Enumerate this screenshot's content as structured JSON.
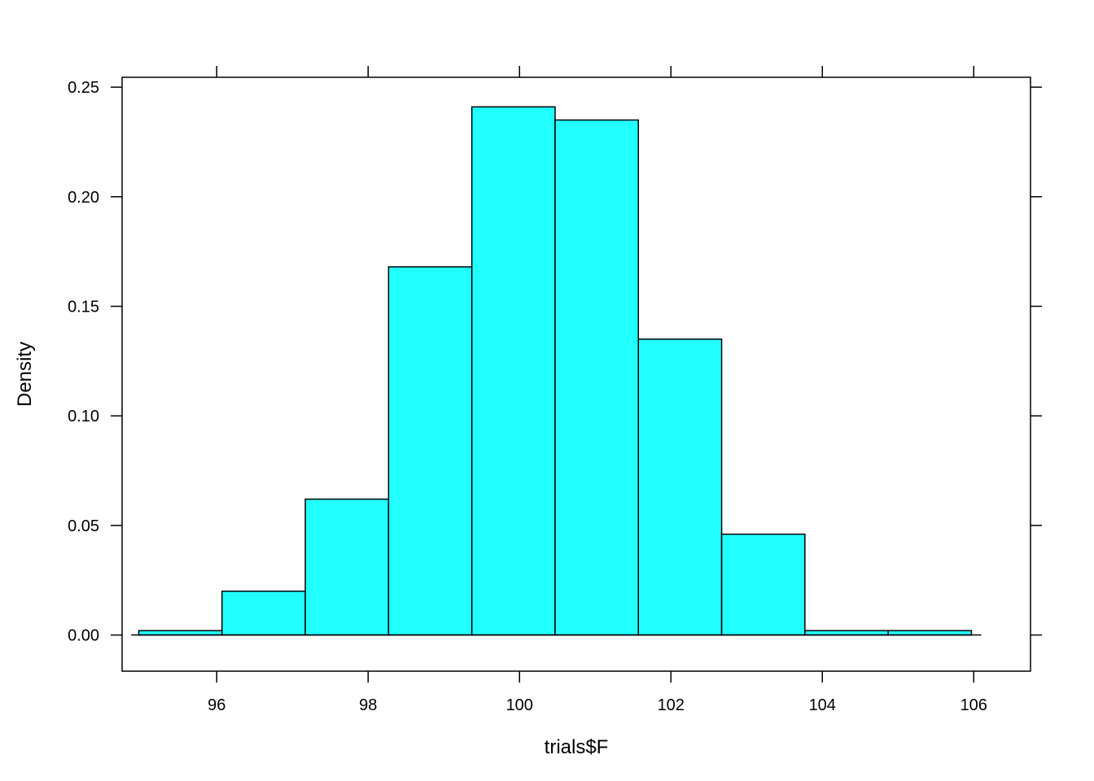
{
  "chart_data": {
    "type": "bar",
    "xlabel": "trials$F",
    "ylabel": "Density",
    "xlim": [
      94.75,
      106.75
    ],
    "ylim": [
      -0.0165,
      0.2545
    ],
    "x_ticks": [
      "96",
      "98",
      "100",
      "102",
      "104",
      "106"
    ],
    "y_ticks": [
      "0.00",
      "0.05",
      "0.10",
      "0.15",
      "0.20",
      "0.25"
    ],
    "baseline_range": [
      94.87,
      106.1
    ],
    "bins": [
      {
        "x0": 94.97,
        "x1": 96.07,
        "density": 0.002
      },
      {
        "x0": 96.07,
        "x1": 97.17,
        "density": 0.02
      },
      {
        "x0": 97.17,
        "x1": 98.27,
        "density": 0.062
      },
      {
        "x0": 98.27,
        "x1": 99.37,
        "density": 0.168
      },
      {
        "x0": 99.37,
        "x1": 100.47,
        "density": 0.241
      },
      {
        "x0": 100.47,
        "x1": 101.57,
        "density": 0.235
      },
      {
        "x0": 101.57,
        "x1": 102.67,
        "density": 0.135
      },
      {
        "x0": 102.67,
        "x1": 103.77,
        "density": 0.046
      },
      {
        "x0": 103.77,
        "x1": 104.87,
        "density": 0.002
      },
      {
        "x0": 104.87,
        "x1": 105.97,
        "density": 0.002
      }
    ],
    "fill_color": "#22ffff",
    "stroke_color": "#000000",
    "grid": false,
    "legend": "none"
  }
}
